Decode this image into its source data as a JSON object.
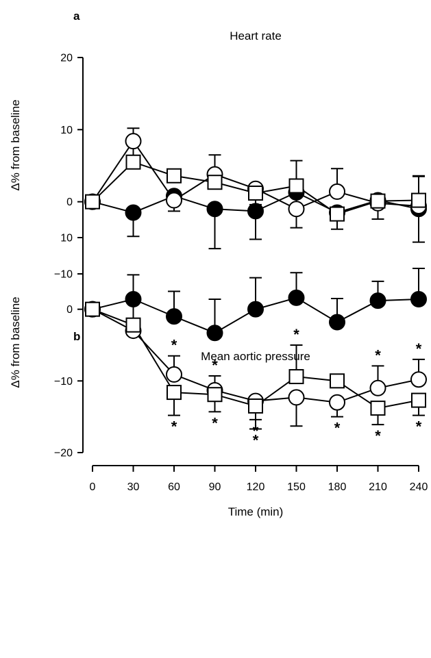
{
  "chart_data": [
    {
      "type": "line",
      "panel": "a",
      "title": "Heart rate",
      "ylabel": "Δ% from baseline",
      "xlabel": "",
      "x": [
        0,
        30,
        60,
        90,
        120,
        150,
        180,
        210,
        240
      ],
      "xlim": [
        0,
        240
      ],
      "ylim": [
        -10,
        20
      ],
      "yticks": [
        -10,
        0,
        10,
        20
      ],
      "xticks": [],
      "grid": false,
      "legend": "none",
      "series": [
        {
          "marker": "filled-circle",
          "values": [
            0,
            -1.5,
            0.8,
            -1.0,
            -1.3,
            1.3,
            -1.5,
            0.2,
            -1.0
          ],
          "error": [
            0,
            3.3,
            0,
            5.5,
            3.9,
            2.7,
            2.3,
            0,
            4.6
          ],
          "error_direction": "down"
        },
        {
          "marker": "open-circle",
          "values": [
            0,
            8.4,
            0.2,
            3.8,
            1.8,
            -1.0,
            1.4,
            -0.2,
            -0.6
          ],
          "error": [
            0,
            1.8,
            1.5,
            2.7,
            2.2,
            2.6,
            3.2,
            2.2,
            4.1
          ],
          "error_direction": "mixed"
        },
        {
          "marker": "open-square",
          "values": [
            0,
            5.5,
            3.6,
            2.7,
            1.2,
            2.2,
            -1.7,
            0.1,
            0.2
          ],
          "error": [
            0,
            3.0,
            0,
            0,
            0,
            3.5,
            0,
            0,
            3.4
          ],
          "error_direction": "mixed"
        }
      ]
    },
    {
      "type": "line",
      "panel": "b",
      "title": "Mean aortic pressure",
      "ylabel": "Δ% from baseline",
      "xlabel": "Time (min)",
      "x": [
        0,
        30,
        60,
        90,
        120,
        150,
        180,
        210,
        240
      ],
      "xlim": [
        0,
        240
      ],
      "ylim": [
        -20,
        10
      ],
      "yticks": [
        -20,
        -10,
        0,
        10
      ],
      "xticks": [
        "0",
        "30",
        "60",
        "90",
        "120",
        "150",
        "180",
        "210",
        "240"
      ],
      "grid": false,
      "legend": "none",
      "series": [
        {
          "marker": "filled-circle",
          "values": [
            0,
            1.4,
            -1.0,
            -3.3,
            0,
            1.6,
            -1.8,
            1.2,
            1.4
          ],
          "error": [
            0,
            3.4,
            3.5,
            4.7,
            4.4,
            3.5,
            3.3,
            2.7,
            4.3
          ],
          "error_direction": "up"
        },
        {
          "marker": "open-circle",
          "values": [
            0,
            -3.0,
            -9.1,
            -11.3,
            -12.8,
            -12.3,
            -13.0,
            -11.0,
            -9.8
          ],
          "error": [
            0,
            0,
            2.6,
            2.0,
            2.6,
            4.0,
            2.0,
            3.1,
            2.8
          ],
          "error_direction": "mixed",
          "significance": [
            "",
            "",
            "*",
            "*",
            "*",
            "",
            "*",
            "*",
            "*"
          ]
        },
        {
          "marker": "open-square",
          "values": [
            0,
            -2.2,
            -11.6,
            -11.9,
            -13.5,
            -9.4,
            -10.0,
            -13.8,
            -12.7
          ],
          "error": [
            0,
            3.7,
            3.2,
            2.4,
            3.2,
            4.4,
            0,
            2.3,
            2.1
          ],
          "error_direction": "mixed",
          "significance": [
            "",
            "",
            "*",
            "*",
            "*",
            "*",
            "",
            "*",
            "*"
          ]
        }
      ]
    }
  ]
}
